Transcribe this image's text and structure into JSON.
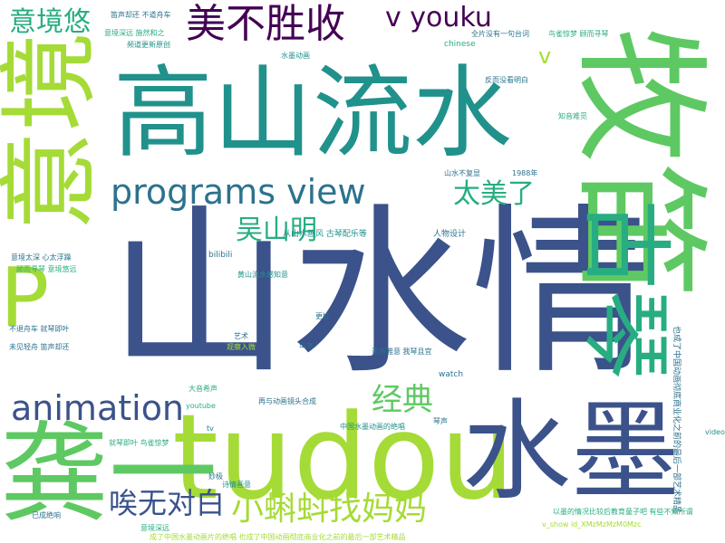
{
  "palette": {
    "c1": "#3b528b",
    "c2": "#2c728e",
    "c3": "#21918c",
    "c4": "#27ad81",
    "c5": "#5ec962",
    "c6": "#a5db36",
    "c7": "#440154"
  },
  "words": [
    {
      "text": "山水情",
      "color": "#3b528b",
      "weight": 1.0
    },
    {
      "text": "高山流水",
      "color": "#21918c",
      "weight": 0.62
    },
    {
      "text": "牧笛",
      "color": "#5ec962",
      "weight": 0.6
    },
    {
      "text": "tudou",
      "color": "#a5db36",
      "weight": 0.52
    },
    {
      "text": "水墨",
      "color": "#3b528b",
      "weight": 0.45
    },
    {
      "text": "龚一",
      "color": "#5ec962",
      "weight": 0.42
    },
    {
      "text": "意境",
      "color": "#a5db36",
      "weight": 0.42
    },
    {
      "text": "古琴",
      "color": "#27ad81",
      "weight": 0.38
    },
    {
      "text": "P",
      "color": "#a5db36",
      "weight": 0.35
    },
    {
      "text": "美不胜收",
      "color": "#440154",
      "weight": 0.2
    },
    {
      "text": "programs view",
      "color": "#2c728e",
      "weight": 0.16
    },
    {
      "text": "animation",
      "color": "#3b528b",
      "weight": 0.16
    },
    {
      "text": "v youku",
      "color": "#440154",
      "weight": 0.12
    },
    {
      "text": "意境悠",
      "color": "#27ad81",
      "weight": 0.12
    },
    {
      "text": "吴山明",
      "color": "#27ad81",
      "weight": 0.12
    },
    {
      "text": "太美了",
      "color": "#27ad81",
      "weight": 0.12
    },
    {
      "text": "经典",
      "color": "#5ec962",
      "weight": 0.12
    },
    {
      "text": "唉无对白",
      "color": "#3b528b",
      "weight": 0.12
    },
    {
      "text": "小蝌蚪找妈妈",
      "color": "#a5db36",
      "weight": 0.12
    },
    {
      "text": "v",
      "color": "#a5db36",
      "weight": 0.08
    },
    {
      "text": "bilibili",
      "color": "#2c728e",
      "weight": 0.03
    },
    {
      "text": "watch",
      "color": "#2c728e",
      "weight": 0.03
    },
    {
      "text": "chinese",
      "color": "#27ad81",
      "weight": 0.02
    },
    {
      "text": "youtube",
      "color": "#27ad81",
      "weight": 0.02
    },
    {
      "text": "video",
      "color": "#21918c",
      "weight": 0.02
    },
    {
      "text": "tv",
      "color": "#2c728e",
      "weight": 0.02
    },
    {
      "text": "1988年",
      "color": "#2c728e",
      "weight": 0.02
    },
    {
      "text": "人物设计",
      "color": "#2c728e",
      "weight": 0.02
    },
    {
      "text": "从山水画风 古琴配乐等",
      "color": "#21918c",
      "weight": 0.02
    },
    {
      "text": "黄山流水感知意",
      "color": "#21918c",
      "weight": 0.02
    },
    {
      "text": "意境太深 心太浮躁",
      "color": "#2c728e",
      "weight": 0.02
    },
    {
      "text": "顾而寻琴 意境悠远",
      "color": "#27ad81",
      "weight": 0.02
    },
    {
      "text": "意境深远",
      "color": "#27ad81",
      "weight": 0.02
    },
    {
      "text": "已成绝响",
      "color": "#2c728e",
      "weight": 0.02
    },
    {
      "text": "就琴即叶 鸟雀惊梦",
      "color": "#27ad81",
      "weight": 0.02
    },
    {
      "text": "观察入微",
      "color": "#a5db36",
      "weight": 0.02
    },
    {
      "text": "未见轻舟 笛声却还",
      "color": "#2c728e",
      "weight": 0.02
    },
    {
      "text": "笛声却还 不道舟车",
      "color": "#2c728e",
      "weight": 0.02
    },
    {
      "text": "意境深远 施然和之",
      "color": "#27ad81",
      "weight": 0.02
    },
    {
      "text": "频道更新原创",
      "color": "#21918c",
      "weight": 0.02
    },
    {
      "text": "全片没有一句台词",
      "color": "#2c728e",
      "weight": 0.02
    },
    {
      "text": "鸟雀惊梦 顾而寻琴",
      "color": "#27ad81",
      "weight": 0.02
    },
    {
      "text": "反而没看明白",
      "color": "#2c728e",
      "weight": 0.02
    },
    {
      "text": "知音难觅",
      "color": "#27ad81",
      "weight": 0.02
    },
    {
      "text": "山水不复显",
      "color": "#2c728e",
      "weight": 0.02
    },
    {
      "text": "水墨动画",
      "color": "#21918c",
      "weight": 0.02
    },
    {
      "text": "诗情画意",
      "color": "#21918c",
      "weight": 0.02
    },
    {
      "text": "素装雅意 我琴且宜",
      "color": "#2c728e",
      "weight": 0.02
    },
    {
      "text": "成了中国水墨动画片的绝唱 也成了中国动画彻底商业化之前的最后一部艺术精品",
      "color": "#a5db36",
      "weight": 0.02
    },
    {
      "text": "中国水墨动画的绝唱",
      "color": "#21918c",
      "weight": 0.02
    },
    {
      "text": "再与动画镜头合成",
      "color": "#2c728e",
      "weight": 0.02
    },
    {
      "text": "大音希声",
      "color": "#27ad81",
      "weight": 0.02
    },
    {
      "text": "艺术",
      "color": "#2c728e",
      "weight": 0.02
    },
    {
      "text": "更好",
      "color": "#2c728e",
      "weight": 0.02
    },
    {
      "text": "山水",
      "color": "#2c728e",
      "weight": 0.02
    },
    {
      "text": "妙极",
      "color": "#2c728e",
      "weight": 0.02
    },
    {
      "text": "琴声",
      "color": "#2c728e",
      "weight": 0.02
    },
    {
      "text": "也成了中国动画彻底商业化之前的最后一部艺术精品",
      "color": "#2c728e",
      "weight": 0.02
    },
    {
      "text": "v_show id_XMzMzMzM0Mzc",
      "color": "#a5db36",
      "weight": 0.02
    },
    {
      "text": "不退舟车 就琴即叶",
      "color": "#2c728e",
      "weight": 0.02
    },
    {
      "text": "以墨的情况比较后教育童子吧 有些不知所谓",
      "color": "#27ad81",
      "weight": 0.02
    }
  ]
}
